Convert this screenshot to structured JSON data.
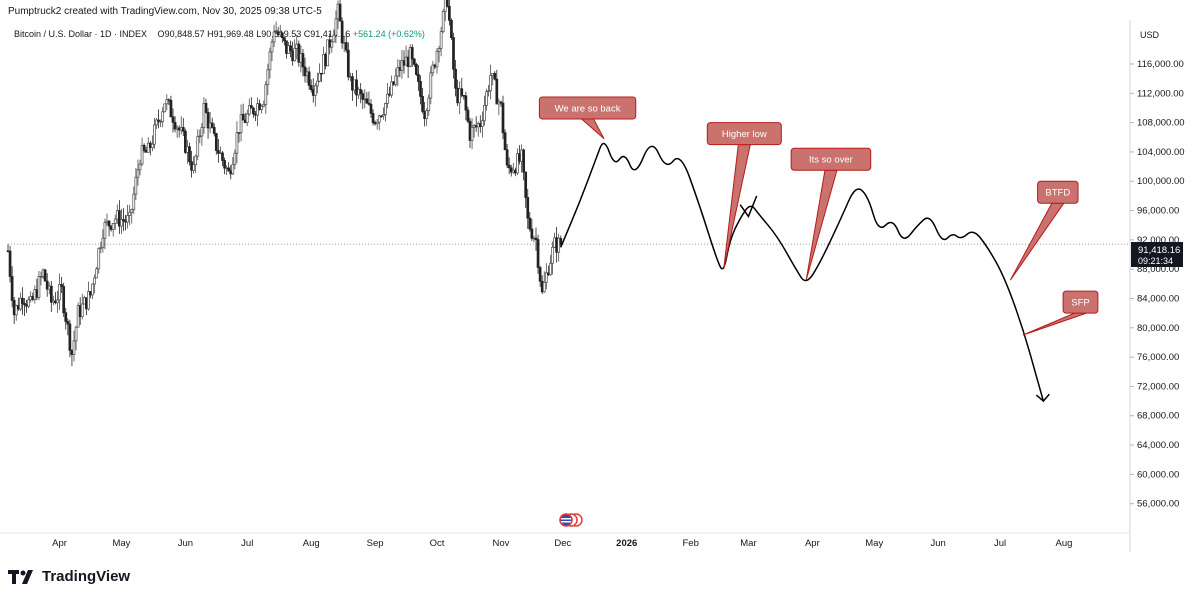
{
  "header": {
    "text": "Pumptruck2 created with TradingView.com, Nov 30, 2025 09:38 UTC-5"
  },
  "legend": {
    "symbol": "Bitcoin / U.S. Dollar · 1D · INDEX",
    "open_label": "O",
    "open": "90,848.57",
    "high_label": "H",
    "high": "91,969.48",
    "low_label": "L",
    "low": "90,519.53",
    "close_label": "C",
    "close": "91,418.16",
    "change": "+561.24 (+0.62%)"
  },
  "price_axis": {
    "currency": "USD",
    "last_price": "91,418.16",
    "countdown": "09:21:34",
    "last_price_color": "#131722"
  },
  "footer": {
    "brand": "TradingView"
  },
  "chart_data": {
    "type": "candlestick",
    "ylim": [
      52000,
      122000
    ],
    "y_ticks": [
      56000,
      60000,
      64000,
      68000,
      72000,
      76000,
      80000,
      84000,
      88000,
      92000,
      96000,
      100000,
      104000,
      108000,
      112000,
      116000
    ],
    "y_tick_labels": [
      "56,000.00",
      "60,000.00",
      "64,000.00",
      "68,000.00",
      "72,000.00",
      "76,000.00",
      "80,000.00",
      "84,000.00",
      "88,000.00",
      "92,000.00",
      "96,000.00",
      "100,000.00",
      "104,000.00",
      "108,000.00",
      "112,000.00",
      "116,000.00"
    ],
    "x_ticks": [
      {
        "label": "Apr",
        "date": "2025-04-01"
      },
      {
        "label": "May",
        "date": "2025-05-01"
      },
      {
        "label": "Jun",
        "date": "2025-06-01"
      },
      {
        "label": "Jul",
        "date": "2025-07-01"
      },
      {
        "label": "Aug",
        "date": "2025-08-01"
      },
      {
        "label": "Sep",
        "date": "2025-09-01"
      },
      {
        "label": "Oct",
        "date": "2025-10-01"
      },
      {
        "label": "Nov",
        "date": "2025-11-01"
      },
      {
        "label": "Dec",
        "date": "2025-12-01"
      },
      {
        "label": "2026",
        "date": "2026-01-01",
        "bold": true
      },
      {
        "label": "Feb",
        "date": "2026-02-01"
      },
      {
        "label": "Mar",
        "date": "2026-03-01"
      },
      {
        "label": "Apr",
        "date": "2026-04-01"
      },
      {
        "label": "May",
        "date": "2026-05-01"
      },
      {
        "label": "Jun",
        "date": "2026-06-01"
      },
      {
        "label": "Jul",
        "date": "2026-07-01"
      },
      {
        "label": "Aug",
        "date": "2026-08-01"
      }
    ],
    "x_range": [
      "2025-03-07",
      "2026-09-02"
    ],
    "last_price": 91418.16,
    "up_color": "#4a4a4a",
    "down_color": "#222222",
    "price_path": [
      [
        "2025-03-07",
        90500
      ],
      [
        "2025-03-10",
        82000
      ],
      [
        "2025-03-14",
        84500
      ],
      [
        "2025-03-18",
        83000
      ],
      [
        "2025-03-24",
        87500
      ],
      [
        "2025-03-28",
        83500
      ],
      [
        "2025-04-02",
        85000
      ],
      [
        "2025-04-07",
        76500
      ],
      [
        "2025-04-10",
        82000
      ],
      [
        "2025-04-16",
        84500
      ],
      [
        "2025-04-22",
        93500
      ],
      [
        "2025-04-28",
        95000
      ],
      [
        "2025-05-05",
        94500
      ],
      [
        "2025-05-10",
        103500
      ],
      [
        "2025-05-14",
        104000
      ],
      [
        "2025-05-22",
        111000
      ],
      [
        "2025-05-26",
        109000
      ],
      [
        "2025-06-01",
        105000
      ],
      [
        "2025-06-05",
        101500
      ],
      [
        "2025-06-10",
        110000
      ],
      [
        "2025-06-15",
        105500
      ],
      [
        "2025-06-22",
        101000
      ],
      [
        "2025-06-27",
        107500
      ],
      [
        "2025-07-03",
        109500
      ],
      [
        "2025-07-09",
        111500
      ],
      [
        "2025-07-14",
        121000
      ],
      [
        "2025-07-20",
        118000
      ],
      [
        "2025-07-25",
        117500
      ],
      [
        "2025-08-02",
        113000
      ],
      [
        "2025-08-08",
        117000
      ],
      [
        "2025-08-14",
        123000
      ],
      [
        "2025-08-20",
        113500
      ],
      [
        "2025-08-26",
        111000
      ],
      [
        "2025-09-01",
        108500
      ],
      [
        "2025-09-07",
        111000
      ],
      [
        "2025-09-13",
        115500
      ],
      [
        "2025-09-18",
        117000
      ],
      [
        "2025-09-25",
        109500
      ],
      [
        "2025-10-01",
        118000
      ],
      [
        "2025-10-06",
        125000
      ],
      [
        "2025-10-10",
        112000
      ],
      [
        "2025-10-14",
        111000
      ],
      [
        "2025-10-17",
        106500
      ],
      [
        "2025-10-22",
        108000
      ],
      [
        "2025-10-27",
        114500
      ],
      [
        "2025-11-01",
        110000
      ],
      [
        "2025-11-04",
        101500
      ],
      [
        "2025-11-11",
        103000
      ],
      [
        "2025-11-14",
        94500
      ],
      [
        "2025-11-18",
        92000
      ],
      [
        "2025-11-21",
        84500
      ],
      [
        "2025-11-24",
        88500
      ],
      [
        "2025-11-27",
        91300
      ],
      [
        "2025-11-30",
        91418
      ]
    ],
    "projection": [
      [
        "2025-11-30",
        91000
      ],
      [
        "2025-12-09",
        97000
      ],
      [
        "2025-12-17",
        103000
      ],
      [
        "2025-12-21",
        106000
      ],
      [
        "2025-12-26",
        102000
      ],
      [
        "2025-12-31",
        104000
      ],
      [
        "2026-01-05",
        100500
      ],
      [
        "2026-01-13",
        106000
      ],
      [
        "2026-01-20",
        101500
      ],
      [
        "2026-01-27",
        104000
      ],
      [
        "2026-02-05",
        97000
      ],
      [
        "2026-02-14",
        89000
      ],
      [
        "2026-02-17",
        87500
      ],
      [
        "2026-02-20",
        92000
      ],
      [
        "2026-02-25",
        95000
      ],
      [
        "2026-03-02",
        97000
      ],
      [
        "2026-03-06",
        95500
      ],
      [
        "2026-03-15",
        92500
      ],
      [
        "2026-03-24",
        88000
      ],
      [
        "2026-03-29",
        85800
      ],
      [
        "2026-04-05",
        89000
      ],
      [
        "2026-04-15",
        95000
      ],
      [
        "2026-04-22",
        99500
      ],
      [
        "2026-04-28",
        98000
      ],
      [
        "2026-05-03",
        93000
      ],
      [
        "2026-05-10",
        95000
      ],
      [
        "2026-05-15",
        91500
      ],
      [
        "2026-05-22",
        94000
      ],
      [
        "2026-05-28",
        95500
      ],
      [
        "2026-06-03",
        91500
      ],
      [
        "2026-06-08",
        93000
      ],
      [
        "2026-06-12",
        92000
      ],
      [
        "2026-06-18",
        93500
      ],
      [
        "2026-06-25",
        91000
      ],
      [
        "2026-07-03",
        87000
      ],
      [
        "2026-07-12",
        80000
      ],
      [
        "2026-07-19",
        73000
      ],
      [
        "2026-07-22",
        70000
      ]
    ],
    "annotations": [
      {
        "text": "We are so back",
        "date": "2025-12-13",
        "price": 110000,
        "tip_date": "2025-12-21",
        "tip_price": 105800
      },
      {
        "text": "Higher low",
        "date": "2026-02-27",
        "price": 106500,
        "tip_date": "2026-02-17",
        "tip_price": 88000
      },
      {
        "text": "Its so over",
        "date": "2026-04-10",
        "price": 103000,
        "tip_date": "2026-03-29",
        "tip_price": 86500
      },
      {
        "text": "BTFD",
        "date": "2026-07-29",
        "price": 98500,
        "tip_date": "2026-07-06",
        "tip_price": 86500
      },
      {
        "text": "SFP",
        "date": "2026-08-09",
        "price": 83500,
        "tip_date": "2026-07-12",
        "tip_price": 79000
      }
    ]
  }
}
